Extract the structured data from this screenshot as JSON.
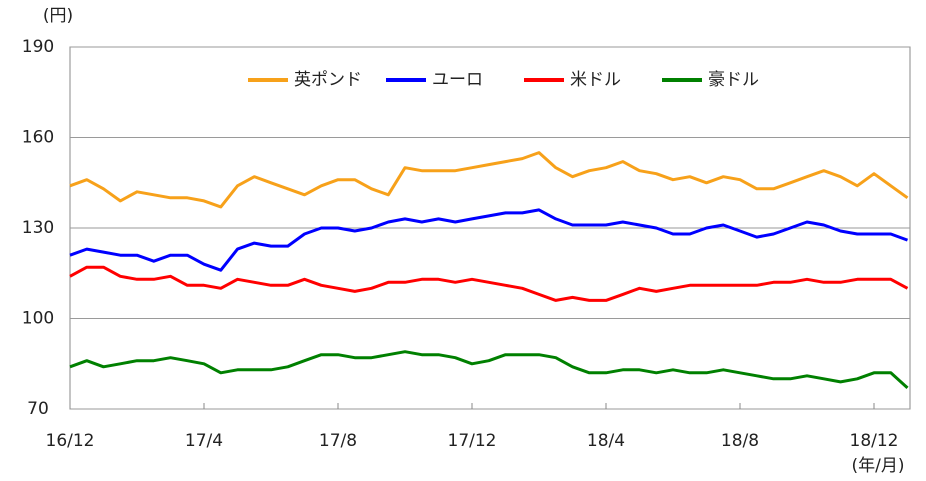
{
  "chart_data": {
    "type": "line",
    "ylabel": "(円)",
    "xlabel": "(年/月)",
    "categories": [
      "16/12",
      null,
      null,
      null,
      null,
      null,
      null,
      null,
      "17/4",
      null,
      null,
      null,
      null,
      null,
      null,
      null,
      "17/8",
      null,
      null,
      null,
      null,
      null,
      null,
      null,
      "17/12",
      null,
      null,
      null,
      null,
      null,
      null,
      null,
      "18/4",
      null,
      null,
      null,
      null,
      null,
      null,
      null,
      "18/8",
      null,
      null,
      null,
      null,
      null,
      null,
      null,
      "18/12",
      null,
      null
    ],
    "series": [
      {
        "name": "英ポンド",
        "color": "#f7a11a",
        "values": [
          144,
          146,
          143,
          139,
          142,
          141,
          140,
          140,
          139,
          137,
          144,
          147,
          145,
          143,
          141,
          144,
          146,
          146,
          143,
          141,
          150,
          149,
          149,
          149,
          150,
          151,
          152,
          153,
          155,
          150,
          147,
          149,
          150,
          152,
          149,
          148,
          146,
          147,
          145,
          147,
          146,
          143,
          143,
          145,
          147,
          149,
          147,
          144,
          148,
          144,
          140
        ]
      },
      {
        "name": "ユーロ",
        "color": "#0000ff",
        "values": [
          121,
          123,
          122,
          121,
          121,
          119,
          121,
          121,
          118,
          116,
          123,
          125,
          124,
          124,
          128,
          130,
          130,
          129,
          130,
          132,
          133,
          132,
          133,
          132,
          133,
          134,
          135,
          135,
          136,
          133,
          131,
          131,
          131,
          132,
          131,
          130,
          128,
          128,
          130,
          131,
          129,
          127,
          128,
          130,
          132,
          131,
          129,
          128,
          128,
          128,
          126
        ]
      },
      {
        "name": "米ドル",
        "color": "#ff0000",
        "values": [
          114,
          117,
          117,
          114,
          113,
          113,
          114,
          111,
          111,
          110,
          113,
          112,
          111,
          111,
          113,
          111,
          110,
          109,
          110,
          112,
          112,
          113,
          113,
          112,
          113,
          112,
          111,
          110,
          108,
          106,
          107,
          106,
          106,
          108,
          110,
          109,
          110,
          111,
          111,
          111,
          111,
          111,
          112,
          112,
          113,
          112,
          112,
          113,
          113,
          113,
          110
        ]
      },
      {
        "name": "豪ドル",
        "color": "#008000",
        "values": [
          84,
          86,
          84,
          85,
          86,
          86,
          87,
          86,
          85,
          82,
          83,
          83,
          83,
          84,
          86,
          88,
          88,
          87,
          87,
          88,
          89,
          88,
          88,
          87,
          85,
          86,
          88,
          88,
          88,
          87,
          84,
          82,
          82,
          83,
          83,
          82,
          83,
          82,
          82,
          83,
          82,
          81,
          80,
          80,
          81,
          80,
          79,
          80,
          82,
          82,
          77
        ]
      }
    ],
    "ylim": [
      70,
      190
    ],
    "yticks": [
      70,
      100,
      130,
      160,
      190
    ],
    "grid": true
  }
}
